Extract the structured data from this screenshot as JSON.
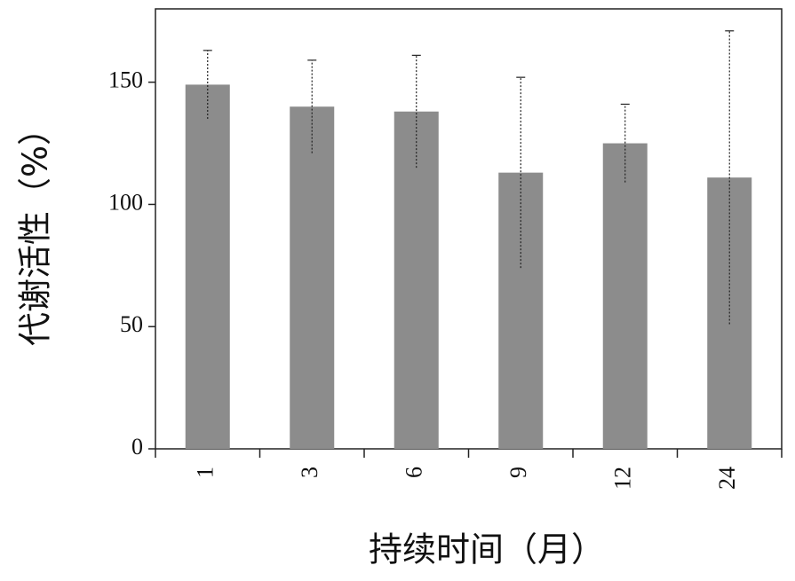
{
  "chart_data": {
    "type": "bar",
    "xlabel": "持续时间（月）",
    "ylabel": "代谢活性（%）",
    "categories": [
      "1",
      "3",
      "6",
      "9",
      "12",
      "24"
    ],
    "values": [
      149,
      140,
      138,
      113,
      125,
      111
    ],
    "errors": [
      14,
      19,
      23,
      39,
      16,
      60
    ],
    "color": "#8c8c8c",
    "ylim": [
      0,
      180
    ],
    "yticks": [
      0,
      50,
      100,
      150
    ],
    "grid": false
  }
}
